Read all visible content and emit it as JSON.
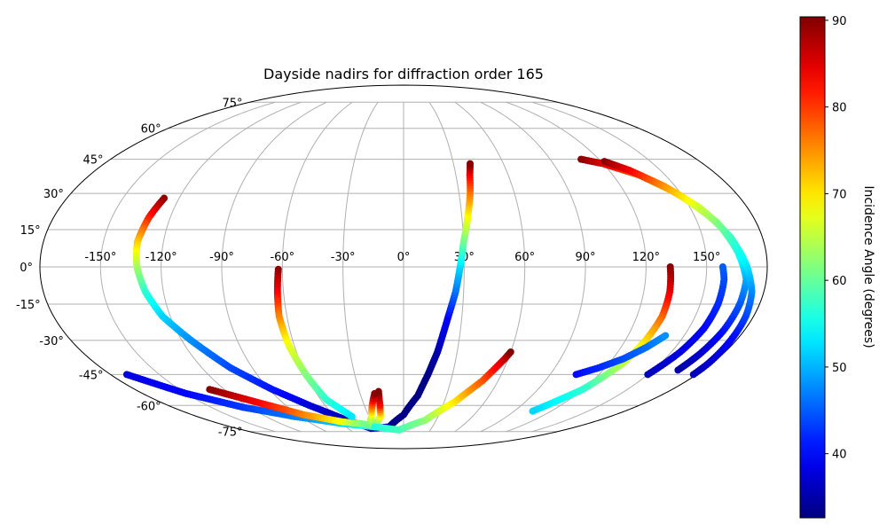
{
  "chart_data": {
    "type": "scatter",
    "projection": "mollweide",
    "title": "Dayside nadirs for diffraction order 165",
    "grid": true,
    "lon_ticks": [
      "-150°",
      "-120°",
      "-90°",
      "-60°",
      "-30°",
      "0°",
      "30°",
      "60°",
      "90°",
      "120°",
      "150°"
    ],
    "lon_tick_values": [
      -150,
      -120,
      -90,
      -60,
      -30,
      0,
      30,
      60,
      90,
      120,
      150
    ],
    "lat_ticks": [
      "-75°",
      "-60°",
      "-45°",
      "-30°",
      "-15°",
      "0°",
      "15°",
      "30°",
      "45°",
      "60°",
      "75°"
    ],
    "lat_tick_values": [
      -75,
      -60,
      -45,
      -30,
      -15,
      0,
      15,
      30,
      45,
      60,
      75
    ],
    "colorbar": {
      "label": "Incidence Angle (degrees)",
      "colormap": "jet",
      "vmin": 32.6,
      "vmax": 90.4,
      "ticks": [
        "40",
        "50",
        "60",
        "70",
        "80",
        "90"
      ],
      "tick_values": [
        40,
        50,
        60,
        70,
        80,
        90
      ]
    },
    "series": [
      {
        "points": [
          [
            -128,
            28,
            90
          ],
          [
            -131,
            20,
            82
          ],
          [
            -133,
            10,
            72
          ],
          [
            -132,
            0,
            64
          ],
          [
            -129,
            -10,
            57
          ],
          [
            -124,
            -20,
            52
          ],
          [
            -115,
            -30,
            48
          ],
          [
            -103,
            -42,
            44
          ],
          [
            -88,
            -52,
            41
          ],
          [
            -72,
            -60,
            38
          ],
          [
            -55,
            -67,
            36
          ],
          [
            -35,
            -73,
            35
          ],
          [
            -15,
            -72,
            34
          ],
          [
            0,
            -65,
            33
          ],
          [
            10,
            -55,
            33
          ],
          [
            15,
            -45,
            33
          ],
          [
            19,
            -35,
            35
          ],
          [
            23,
            -20,
            40
          ],
          [
            26,
            -10,
            46
          ],
          [
            28,
            0,
            52
          ],
          [
            30,
            10,
            60
          ],
          [
            33,
            20,
            68
          ],
          [
            36,
            30,
            76
          ],
          [
            38,
            38,
            83
          ],
          [
            40,
            43,
            90
          ]
        ]
      },
      {
        "points": [
          [
            -170,
            -45,
            38
          ],
          [
            -150,
            -54,
            40
          ],
          [
            -125,
            -61,
            43
          ],
          [
            -95,
            -66,
            47
          ],
          [
            -60,
            -70,
            52
          ],
          [
            -30,
            -72,
            56
          ],
          [
            -20,
            -66,
            68
          ],
          [
            -18,
            -60,
            82
          ],
          [
            -17,
            -53,
            90
          ]
        ]
      },
      {
        "points": [
          [
            -130,
            -52,
            90
          ],
          [
            -110,
            -58,
            84
          ],
          [
            -85,
            -65,
            76
          ],
          [
            -58,
            -69,
            68
          ],
          [
            -42,
            -70,
            62
          ],
          [
            -34,
            -71,
            60
          ],
          [
            -28,
            -66,
            66
          ],
          [
            -24,
            -60,
            78
          ],
          [
            -20,
            -54,
            90
          ]
        ]
      },
      {
        "points": [
          [
            -62,
            -1,
            90
          ],
          [
            -63,
            -10,
            84
          ],
          [
            -64,
            -20,
            76
          ],
          [
            -63,
            -32,
            68
          ],
          [
            -60,
            -45,
            62
          ],
          [
            -56,
            -57,
            57
          ],
          [
            -45,
            -66,
            53
          ]
        ]
      },
      {
        "points": [
          [
            -30,
            -72,
            56
          ],
          [
            -5,
            -74,
            58
          ],
          [
            20,
            -68,
            62
          ],
          [
            38,
            -58,
            70
          ],
          [
            50,
            -48,
            78
          ],
          [
            58,
            -38,
            86
          ],
          [
            60,
            -35,
            90
          ]
        ]
      },
      {
        "points": [
          [
            109,
            45,
            90
          ],
          [
            120,
            43,
            85
          ],
          [
            135,
            38,
            78
          ],
          [
            148,
            30,
            70
          ],
          [
            160,
            18,
            62
          ],
          [
            166,
            6,
            56
          ],
          [
            170,
            -5,
            50
          ],
          [
            170,
            -15,
            45
          ],
          [
            169,
            -26,
            41
          ],
          [
            167,
            -36,
            37
          ],
          [
            165,
            -43,
            35
          ]
        ]
      },
      {
        "points": [
          [
            122,
            44,
            90
          ],
          [
            132,
            40,
            84
          ],
          [
            144,
            33,
            75
          ],
          [
            155,
            24,
            66
          ],
          [
            164,
            12,
            58
          ],
          [
            170,
            0,
            53
          ],
          [
            174,
            -10,
            48
          ],
          [
            176,
            -20,
            44
          ],
          [
            177,
            -30,
            40
          ],
          [
            178,
            -40,
            37
          ],
          [
            178,
            -45,
            36
          ]
        ]
      },
      {
        "points": [
          [
            132,
            0,
            90
          ],
          [
            133,
            -10,
            85
          ],
          [
            133,
            -20,
            78
          ],
          [
            131,
            -30,
            71
          ],
          [
            128,
            -40,
            65
          ],
          [
            120,
            -52,
            57
          ],
          [
            105,
            -63,
            52
          ]
        ]
      },
      {
        "points": [
          [
            150,
            -45,
            36
          ],
          [
            155,
            -35,
            38
          ],
          [
            158,
            -25,
            40
          ],
          [
            159,
            -15,
            42
          ],
          [
            159,
            -5,
            44
          ],
          [
            158,
            0,
            45
          ]
        ]
      },
      {
        "points": [
          [
            106,
            -45,
            40
          ],
          [
            116,
            -42,
            42
          ],
          [
            126,
            -38,
            44
          ],
          [
            134,
            -33,
            46
          ],
          [
            140,
            -28,
            48
          ]
        ]
      }
    ]
  }
}
